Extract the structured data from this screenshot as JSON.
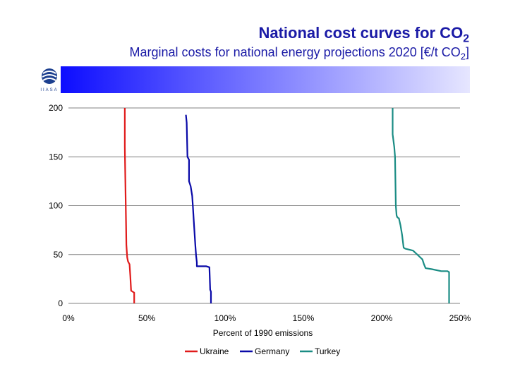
{
  "header": {
    "title": "National cost curves for CO",
    "title_sub": "2",
    "subtitle": "Marginal costs for national energy projections 2020 [€/t CO",
    "subtitle_sub": "2",
    "subtitle_end": "]"
  },
  "logo": {
    "icon": "globe-logo-icon",
    "text": "IIASA"
  },
  "colors": {
    "title": "#1a1aa6",
    "banner_start": "#0000ff",
    "banner_end": "#e6e6ff",
    "grid": "#808080"
  },
  "chart_data": {
    "type": "line",
    "title": "",
    "xlabel": "Percent of 1990 emissions",
    "ylabel": "",
    "xlim": [
      0,
      250
    ],
    "ylim": [
      0,
      200
    ],
    "x_ticks": [
      0,
      50,
      100,
      150,
      200,
      250
    ],
    "x_tick_labels": [
      "0%",
      "50%",
      "100%",
      "150%",
      "200%",
      "250%"
    ],
    "y_ticks": [
      0,
      50,
      100,
      150,
      200
    ],
    "y_tick_labels": [
      "0",
      "50",
      "100",
      "150",
      "200"
    ],
    "grid": "horizontal",
    "legend_position": "bottom",
    "series": [
      {
        "name": "Ukraine",
        "color": "#e01b1b",
        "points": [
          [
            36,
            200
          ],
          [
            36,
            160
          ],
          [
            36.5,
            110
          ],
          [
            36.8,
            80
          ],
          [
            37,
            60
          ],
          [
            37.5,
            47
          ],
          [
            38,
            43
          ],
          [
            39,
            40
          ],
          [
            39.5,
            28
          ],
          [
            40,
            13
          ],
          [
            42,
            11
          ],
          [
            42,
            0
          ]
        ]
      },
      {
        "name": "Germany",
        "color": "#0a0aa8",
        "points": [
          [
            75,
            193
          ],
          [
            75.5,
            185
          ],
          [
            76,
            150
          ],
          [
            77,
            147
          ],
          [
            77,
            125
          ],
          [
            78,
            120
          ],
          [
            79,
            110
          ],
          [
            79.5,
            98
          ],
          [
            80,
            85
          ],
          [
            81,
            60
          ],
          [
            81.5,
            49
          ],
          [
            82,
            42
          ],
          [
            82,
            38
          ],
          [
            88,
            38
          ],
          [
            90,
            37
          ],
          [
            90.5,
            14
          ],
          [
            91,
            12
          ],
          [
            91,
            0
          ]
        ]
      },
      {
        "name": "Turkey",
        "color": "#1a8c84",
        "points": [
          [
            207,
            200
          ],
          [
            207,
            173
          ],
          [
            208,
            160
          ],
          [
            208.5,
            150
          ],
          [
            209,
            100
          ],
          [
            209.5,
            90
          ],
          [
            210,
            88
          ],
          [
            211,
            87
          ],
          [
            212,
            80
          ],
          [
            213,
            70
          ],
          [
            214,
            57
          ],
          [
            215,
            56
          ],
          [
            220,
            54
          ],
          [
            224,
            48
          ],
          [
            226,
            45
          ],
          [
            227,
            40
          ],
          [
            228,
            36
          ],
          [
            232,
            35
          ],
          [
            238,
            33
          ],
          [
            242,
            33
          ],
          [
            243,
            32
          ],
          [
            243,
            0
          ]
        ]
      }
    ]
  }
}
